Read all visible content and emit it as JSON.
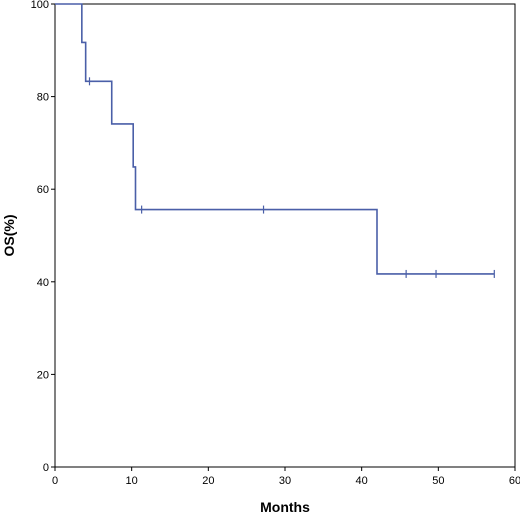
{
  "chart_data": {
    "type": "line",
    "subtype": "kaplan-meier-step",
    "title": "",
    "xlabel": "Months",
    "ylabel": "OS(%)",
    "xlim": [
      0,
      60
    ],
    "ylim": [
      0,
      100
    ],
    "xticks": [
      0,
      10,
      20,
      30,
      40,
      50,
      60
    ],
    "yticks": [
      0,
      20,
      40,
      60,
      80,
      100
    ],
    "grid": false,
    "legend": "none",
    "series": [
      {
        "color": "#4a5fa8",
        "steps": [
          {
            "x": 0,
            "y": 100
          },
          {
            "x": 3.5,
            "y": 91.7
          },
          {
            "x": 4.0,
            "y": 83.3
          },
          {
            "x": 7.4,
            "y": 74.1
          },
          {
            "x": 10.2,
            "y": 64.8
          },
          {
            "x": 10.5,
            "y": 55.6
          },
          {
            "x": 42.0,
            "y": 41.7
          }
        ],
        "end_x": 57.3,
        "censored": [
          {
            "x": 4.5,
            "y": 83.3
          },
          {
            "x": 11.3,
            "y": 55.6
          },
          {
            "x": 27.2,
            "y": 55.6
          },
          {
            "x": 45.8,
            "y": 41.7
          },
          {
            "x": 49.7,
            "y": 41.7
          },
          {
            "x": 57.3,
            "y": 41.7
          }
        ]
      }
    ]
  }
}
